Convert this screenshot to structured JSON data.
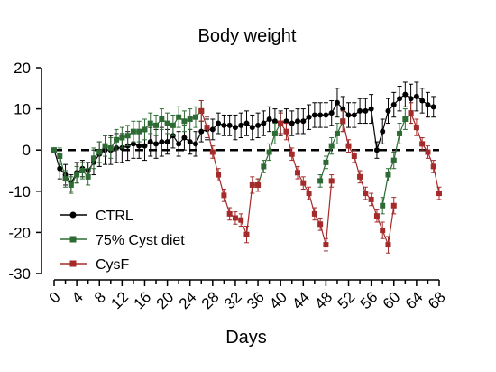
{
  "chart_data": {
    "type": "line",
    "title": "Body weight",
    "xlabel": "Days",
    "ylabel": "",
    "xlim": [
      0,
      68
    ],
    "ylim": [
      -30,
      20
    ],
    "x_ticks": [
      0,
      4,
      8,
      12,
      16,
      20,
      24,
      28,
      32,
      36,
      40,
      44,
      48,
      52,
      56,
      60,
      64,
      68
    ],
    "y_ticks": [
      20,
      10,
      0,
      -10,
      -20,
      -30
    ],
    "reference_line": 0,
    "legend_position": "bottom-left",
    "series": [
      {
        "name": "CTRL",
        "color": "#000000",
        "marker": "circle",
        "points": [
          [
            0,
            0,
            0.5
          ],
          [
            1,
            -4.5,
            2.5
          ],
          [
            2,
            -6,
            2.5
          ],
          [
            3,
            -8,
            2
          ],
          [
            4,
            -5.5,
            2.5
          ],
          [
            5,
            -4.5,
            2
          ],
          [
            6,
            -5,
            2
          ],
          [
            7,
            -3,
            3
          ],
          [
            8,
            -1,
            3
          ],
          [
            9,
            0,
            3.5
          ],
          [
            10,
            0,
            3.5
          ],
          [
            11,
            0.5,
            3.5
          ],
          [
            12,
            0.5,
            3.5
          ],
          [
            13,
            1,
            3.5
          ],
          [
            14,
            1.5,
            3.5
          ],
          [
            15,
            1,
            3
          ],
          [
            16,
            1,
            3.5
          ],
          [
            17,
            2,
            3.5
          ],
          [
            18,
            1.5,
            3.5
          ],
          [
            19,
            2,
            3.5
          ],
          [
            20,
            2,
            3
          ],
          [
            21,
            3.5,
            3
          ],
          [
            22,
            1.5,
            3
          ],
          [
            23,
            3,
            3
          ],
          [
            24,
            2,
            3
          ],
          [
            25,
            1.5,
            3
          ],
          [
            26,
            4.5,
            2.5
          ],
          [
            27,
            5,
            2.5
          ],
          [
            28,
            5,
            2.5
          ],
          [
            29,
            6.5,
            2.5
          ],
          [
            30,
            6,
            2.5
          ],
          [
            31,
            6,
            2.5
          ],
          [
            32,
            5.5,
            3
          ],
          [
            33,
            6,
            3
          ],
          [
            34,
            6.5,
            3
          ],
          [
            35,
            5.5,
            3
          ],
          [
            36,
            6,
            3
          ],
          [
            37,
            6.5,
            3
          ],
          [
            38,
            7.5,
            3
          ],
          [
            39,
            7,
            3
          ],
          [
            40,
            6.5,
            3
          ],
          [
            41,
            7,
            3
          ],
          [
            42,
            6.5,
            3
          ],
          [
            43,
            7,
            3
          ],
          [
            44,
            7,
            3
          ],
          [
            45,
            8,
            3
          ],
          [
            46,
            8.5,
            3
          ],
          [
            47,
            8.5,
            3
          ],
          [
            48,
            8.5,
            3
          ],
          [
            49,
            9,
            3
          ],
          [
            50,
            11.5,
            3.5
          ],
          [
            51,
            10,
            3
          ],
          [
            52,
            8.5,
            3
          ],
          [
            53,
            8.5,
            3
          ],
          [
            54,
            9.5,
            3
          ],
          [
            55,
            9.5,
            3
          ],
          [
            56,
            10,
            3.5
          ],
          [
            57,
            0,
            2
          ],
          [
            58,
            4.5,
            3
          ],
          [
            59,
            9.5,
            3
          ],
          [
            60,
            11,
            3
          ],
          [
            61,
            12.5,
            3
          ],
          [
            62,
            13.5,
            3
          ],
          [
            63,
            12.5,
            3.5
          ],
          [
            64,
            13,
            3.5
          ],
          [
            65,
            12,
            3
          ],
          [
            66,
            11,
            3
          ],
          [
            67,
            10.5,
            2.5
          ]
        ]
      },
      {
        "name": "75% Cyst diet",
        "color": "#2e6b34",
        "marker": "square",
        "points": [
          [
            0,
            0,
            0.5
          ],
          [
            1,
            -1.5,
            2
          ],
          [
            2,
            -7,
            2
          ],
          [
            3,
            -8.5,
            2
          ],
          [
            4,
            -6,
            2
          ],
          [
            5,
            -5,
            2
          ],
          [
            6,
            -6.5,
            2
          ],
          [
            7,
            -2,
            2.5
          ],
          [
            8,
            -0.5,
            2.5
          ],
          [
            9,
            1,
            2.5
          ],
          [
            10,
            0.5,
            2.5
          ],
          [
            11,
            2.5,
            2.5
          ],
          [
            12,
            3,
            2.5
          ],
          [
            13,
            3.5,
            2.5
          ],
          [
            14,
            4.5,
            2.5
          ],
          [
            15,
            4.5,
            2.5
          ],
          [
            16,
            5,
            2.5
          ],
          [
            17,
            6.5,
            2.5
          ],
          [
            18,
            6,
            2.5
          ],
          [
            19,
            7.5,
            2.5
          ],
          [
            20,
            6.5,
            2.5
          ],
          [
            21,
            6,
            2.5
          ],
          [
            22,
            8,
            2.5
          ],
          [
            23,
            7,
            2.5
          ],
          [
            24,
            7.5,
            2.5
          ],
          [
            25,
            8,
            2.5
          ],
          [
            26,
            9.5,
            2.5
          ],
          [
            36,
            -8.5,
            1.5
          ],
          [
            37,
            -4,
            1.5
          ],
          [
            38,
            -0.5,
            2
          ],
          [
            39,
            4,
            2.5
          ],
          [
            40,
            6.5,
            2.5
          ],
          [
            47,
            -7.5,
            1.5
          ],
          [
            48,
            -3,
            1.5
          ],
          [
            49,
            1,
            2
          ],
          [
            50,
            4,
            2.5
          ],
          [
            51,
            7,
            2.5
          ],
          [
            58,
            -13.5,
            2
          ],
          [
            59,
            -6,
            1.5
          ],
          [
            60,
            -2.5,
            2
          ],
          [
            61,
            4,
            2.5
          ],
          [
            62,
            7.5,
            2.5
          ],
          [
            63,
            9,
            2.5
          ]
        ]
      },
      {
        "name": "CysF",
        "color": "#a52a2a",
        "marker": "square",
        "points": [
          [
            26,
            9.5,
            2.5
          ],
          [
            27,
            5.5,
            2.5
          ],
          [
            28,
            -0.5,
            1.5
          ],
          [
            29,
            -6,
            1.5
          ],
          [
            30,
            -11,
            1.5
          ],
          [
            31,
            -15.5,
            1.5
          ],
          [
            32,
            -16.5,
            1.5
          ],
          [
            33,
            -17,
            1.5
          ],
          [
            34,
            -20.5,
            2
          ],
          [
            35,
            -8.5,
            2
          ],
          [
            36,
            -8.5,
            1.5
          ],
          [
            40,
            6.5,
            2.5
          ],
          [
            41,
            4.5,
            2
          ],
          [
            42,
            -1,
            1.5
          ],
          [
            43,
            -5.5,
            1.5
          ],
          [
            44,
            -8,
            1.5
          ],
          [
            45,
            -10.5,
            1.5
          ],
          [
            46,
            -15.5,
            1.5
          ],
          [
            47,
            -18,
            1.5
          ],
          [
            48,
            -23,
            1.5
          ],
          [
            49,
            -7.5,
            1.5
          ],
          [
            51,
            7,
            2.5
          ],
          [
            52,
            1,
            1.5
          ],
          [
            53,
            -1.5,
            1.5
          ],
          [
            54,
            -6.5,
            1.5
          ],
          [
            55,
            -10.5,
            1.5
          ],
          [
            56,
            -12,
            1.5
          ],
          [
            57,
            -16,
            1.5
          ],
          [
            58,
            -19.5,
            2
          ],
          [
            59,
            -23,
            2
          ],
          [
            60,
            -13.5,
            2
          ],
          [
            63,
            9,
            2.5
          ],
          [
            64,
            5.5,
            2
          ],
          [
            65,
            1.5,
            1.5
          ],
          [
            66,
            -0.5,
            1.5
          ],
          [
            67,
            -4,
            1.5
          ],
          [
            68,
            -10.5,
            1.5
          ]
        ]
      }
    ]
  }
}
